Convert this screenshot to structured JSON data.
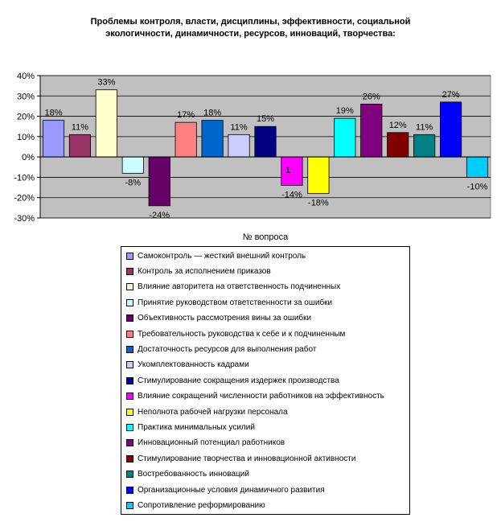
{
  "chart_data": {
    "type": "bar",
    "title_lines": [
      "Проблемы контроля, власти, дисциплины, эффективности, социальной",
      "экологичности, динамичности, ресурсов, инноваций, творчества:"
    ],
    "xlabel": "№ вопроса",
    "ylabel": "",
    "ylim": [
      -30,
      40
    ],
    "y_ticks": [
      "40%",
      "30%",
      "20%",
      "10%",
      "0%",
      "-10%",
      "-20%",
      "-30%"
    ],
    "y_tick_values": [
      40,
      30,
      20,
      10,
      0,
      -10,
      -20,
      -30
    ],
    "categories": [
      "1"
    ],
    "grid": true,
    "legend_position": "bottom",
    "plot_background": "#c0c0c0",
    "series": [
      {
        "name": "Самоконтроль — жесткий внешний контроль",
        "values": [
          18
        ],
        "label": "18%",
        "color": "#9999ff"
      },
      {
        "name": "Контроль за исполнением приказов",
        "values": [
          11
        ],
        "label": "11%",
        "color": "#993366"
      },
      {
        "name": "Влияние авторитета на ответственность подчиненных",
        "values": [
          33
        ],
        "label": "33%",
        "color": "#ffffcc"
      },
      {
        "name": "Принятие руководством ответственности за ошибки",
        "values": [
          -8
        ],
        "label": "-8%",
        "color": "#ccffff"
      },
      {
        "name": "Объективность рассмотрения вины за ошибки",
        "values": [
          -24
        ],
        "label": "-24%",
        "color": "#660066"
      },
      {
        "name": "Требовательность руководства к себе и к подчиненным",
        "values": [
          17
        ],
        "label": "17%",
        "color": "#ff8080"
      },
      {
        "name": "Достаточность ресурсов для выполнения работ",
        "values": [
          18
        ],
        "label": "18%",
        "color": "#0066cc"
      },
      {
        "name": "Укомплектованность кадрами",
        "values": [
          11
        ],
        "label": "11%",
        "color": "#ccccff"
      },
      {
        "name": "Стимулирование сокращения издержек производства",
        "values": [
          15
        ],
        "label": "15%",
        "color": "#000080"
      },
      {
        "name": "Влияние сокращений численности работников на эффективность",
        "values": [
          -14
        ],
        "label": "-14%",
        "color": "#ff00ff"
      },
      {
        "name": "Неполнота рабочей нагрузки персонала",
        "values": [
          -18
        ],
        "label": "-18%",
        "color": "#ffff00"
      },
      {
        "name": "Практика минимальных усилий",
        "values": [
          19
        ],
        "label": "19%",
        "color": "#00ffff"
      },
      {
        "name": "Инновационный потенциал работников",
        "values": [
          26
        ],
        "label": "26%",
        "color": "#800080"
      },
      {
        "name": "Стимулирование творчества и инновационной активности",
        "values": [
          12
        ],
        "label": "12%",
        "color": "#800000"
      },
      {
        "name": "Востребованность инноваций",
        "values": [
          11
        ],
        "label": "11%",
        "color": "#008080"
      },
      {
        "name": "Организационные условия динамичного развития",
        "values": [
          27
        ],
        "label": "27%",
        "color": "#0000ff"
      },
      {
        "name": "Сопротивление реформированию",
        "values": [
          -10
        ],
        "label": "-10%",
        "color": "#00ccff"
      }
    ]
  }
}
